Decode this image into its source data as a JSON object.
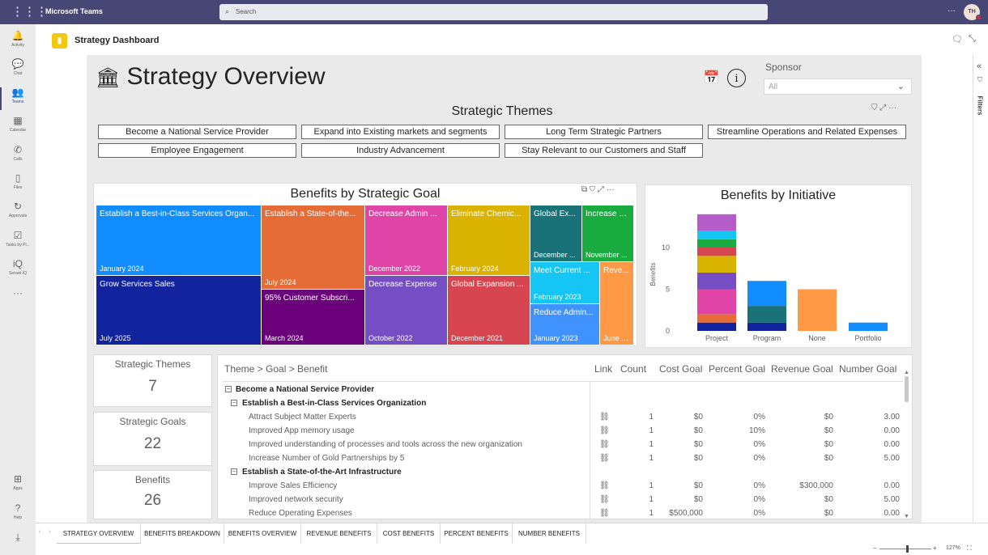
{
  "teams": {
    "app_name": "Microsoft Teams",
    "search_placeholder": "Search",
    "more": "···",
    "avatar": "TH"
  },
  "rail": [
    {
      "label": "Activity",
      "icon": "bell-icon",
      "glyph": "🔔",
      "active": false
    },
    {
      "label": "Chat",
      "icon": "chat-icon",
      "glyph": "💬",
      "active": false
    },
    {
      "label": "Teams",
      "icon": "teams-icon",
      "glyph": "👥",
      "active": true
    },
    {
      "label": "Calendar",
      "icon": "calendar-icon",
      "glyph": "▦",
      "active": false
    },
    {
      "label": "Calls",
      "icon": "phone-icon",
      "glyph": "✆",
      "active": false
    },
    {
      "label": "Files",
      "icon": "file-icon",
      "glyph": "▯",
      "active": false
    },
    {
      "label": "Approvals",
      "icon": "approvals-icon",
      "glyph": "↻",
      "active": false
    },
    {
      "label": "Tasks by Pl...",
      "icon": "tasks-icon",
      "glyph": "☑",
      "active": false
    },
    {
      "label": "Sensei IQ",
      "icon": "sensei-icon",
      "glyph": "iQ",
      "active": false
    },
    {
      "label": "",
      "icon": "more-apps-icon",
      "glyph": "···",
      "active": false
    }
  ],
  "rail_bottom": [
    {
      "label": "Apps",
      "icon": "apps-icon",
      "glyph": "⊞"
    },
    {
      "label": "Help",
      "icon": "help-icon",
      "glyph": "?"
    },
    {
      "label": "",
      "icon": "download-icon",
      "glyph": "⤓"
    }
  ],
  "app": {
    "title": "Strategy Dashboard"
  },
  "report": {
    "title": "Strategy Overview",
    "sponsor_label": "Sponsor",
    "sponsor_value": "All",
    "themes_title": "Strategic Themes",
    "themes": [
      "Become a National Service Provider",
      "Expand into Existing markets and segments",
      "Long Term Strategic Partners",
      "Streamline Operations and Related Expenses",
      "Employee Engagement",
      "Industry Advancement",
      "Stay Relevant to our Customers and Staff"
    ],
    "treemap_title": "Benefits by Strategic Goal",
    "treemap": [
      {
        "label": "Establish a Best-in-Class Services Organ...",
        "date": "January 2024",
        "color": "#118dff"
      },
      {
        "label": "Grow Services Sales",
        "date": "July 2025",
        "color": "#12239e"
      },
      {
        "label": "Establish a State-of-the...",
        "date": "July 2024",
        "color": "#e66c37"
      },
      {
        "label": "95% Customer Subscri...",
        "date": "March 2024",
        "color": "#6b007b"
      },
      {
        "label": "Decrease Admin ...",
        "date": "December 2022",
        "color": "#e044a7"
      },
      {
        "label": "Decrease Expense",
        "date": "October 2022",
        "color": "#744ec2"
      },
      {
        "label": "Eliminate Chemic...",
        "date": "February 2024",
        "color": "#d9b300"
      },
      {
        "label": "Global Expansion ...",
        "date": "December 2021",
        "color": "#d64550"
      },
      {
        "label": "Global Ex...",
        "date": "December ...",
        "color": "#197278"
      },
      {
        "label": "Increase E...",
        "date": "November ...",
        "color": "#1aab40"
      },
      {
        "label": "Meet Current ...",
        "date": "February 2023",
        "color": "#15c6f4"
      },
      {
        "label": "Reduce Admin...",
        "date": "January 2023",
        "color": "#4092ff"
      },
      {
        "label": "Reve...",
        "date": "June 2...",
        "color": "#ff9946"
      }
    ],
    "kpis": [
      {
        "label": "Strategic Themes",
        "value": "7"
      },
      {
        "label": "Strategic Goals",
        "value": "22"
      },
      {
        "label": "Benefits",
        "value": "26"
      }
    ],
    "table": {
      "headers": [
        "Theme > Goal > Benefit",
        "Link",
        "Count",
        "Cost Goal",
        "Percent Goal",
        "Revenue Goal",
        "Number Goal"
      ],
      "rows": [
        {
          "level": 1,
          "name": "Become a National Service Provider",
          "link": false,
          "count": "",
          "cost": "",
          "percent": "",
          "revenue": "",
          "number": ""
        },
        {
          "level": 2,
          "name": "Establish a Best-in-Class Services Organization",
          "link": false,
          "count": "",
          "cost": "",
          "percent": "",
          "revenue": "",
          "number": ""
        },
        {
          "level": 3,
          "name": "Attract Subject Matter Experts",
          "link": true,
          "count": "1",
          "cost": "$0",
          "percent": "0%",
          "revenue": "$0",
          "number": "3.00"
        },
        {
          "level": 3,
          "name": "Improved App memory usage",
          "link": true,
          "count": "1",
          "cost": "$0",
          "percent": "10%",
          "revenue": "$0",
          "number": "0.00"
        },
        {
          "level": 3,
          "name": "Improved understanding of processes and tools across the new organization",
          "link": true,
          "count": "1",
          "cost": "$0",
          "percent": "0%",
          "revenue": "$0",
          "number": "0.00"
        },
        {
          "level": 3,
          "name": "Increase Number of Gold Partnerships by 5",
          "link": true,
          "count": "1",
          "cost": "$0",
          "percent": "0%",
          "revenue": "$0",
          "number": "5.00"
        },
        {
          "level": 2,
          "name": "Establish a State-of-the-Art Infrastructure",
          "link": false,
          "count": "",
          "cost": "",
          "percent": "",
          "revenue": "",
          "number": ""
        },
        {
          "level": 3,
          "name": "Improve Sales Efficiency",
          "link": true,
          "count": "1",
          "cost": "$0",
          "percent": "0%",
          "revenue": "$300,000",
          "number": "0.00"
        },
        {
          "level": 3,
          "name": "Improved network security",
          "link": true,
          "count": "1",
          "cost": "$0",
          "percent": "0%",
          "revenue": "$0",
          "number": "5.00"
        },
        {
          "level": 3,
          "name": "Reduce Operating Expenses",
          "link": true,
          "count": "1",
          "cost": "$500,000",
          "percent": "0%",
          "revenue": "$0",
          "number": "0.00"
        }
      ]
    }
  },
  "chart_data": {
    "type": "bar",
    "stacked": true,
    "title": "Benefits by Initiative",
    "ylabel": "Benefits",
    "xlabel": "",
    "categories": [
      "Project",
      "Program",
      "None",
      "Portfolio"
    ],
    "yticks": [
      "0",
      "5",
      "10"
    ],
    "ylim": [
      0,
      15
    ],
    "grid": false,
    "stacks": [
      [
        {
          "value": 1,
          "color": "#12239e"
        },
        {
          "value": 1,
          "color": "#e66c37"
        },
        {
          "value": 3,
          "color": "#e044a7"
        },
        {
          "value": 2,
          "color": "#744ec2"
        },
        {
          "value": 2,
          "color": "#d9b300"
        },
        {
          "value": 1,
          "color": "#d64550"
        },
        {
          "value": 1,
          "color": "#1aab40"
        },
        {
          "value": 1,
          "color": "#15c6f4"
        },
        {
          "value": 2,
          "color": "#b45dc9"
        }
      ],
      [
        {
          "value": 1,
          "color": "#12239e"
        },
        {
          "value": 2,
          "color": "#197278"
        },
        {
          "value": 3,
          "color": "#118dff"
        }
      ],
      [
        {
          "value": 5,
          "color": "#ff9946"
        }
      ],
      [
        {
          "value": 1,
          "color": "#118dff"
        }
      ]
    ]
  },
  "tabs": [
    "STRATEGY OVERVIEW",
    "BENEFITS BREAKDOWN",
    "BENEFITS OVERVIEW",
    "REVENUE BENEFITS",
    "COST BENEFITS",
    "PERCENT BENEFITS",
    "NUMBER BENEFITS"
  ],
  "status": {
    "zoom": "127%"
  },
  "filters_label": "Filters"
}
